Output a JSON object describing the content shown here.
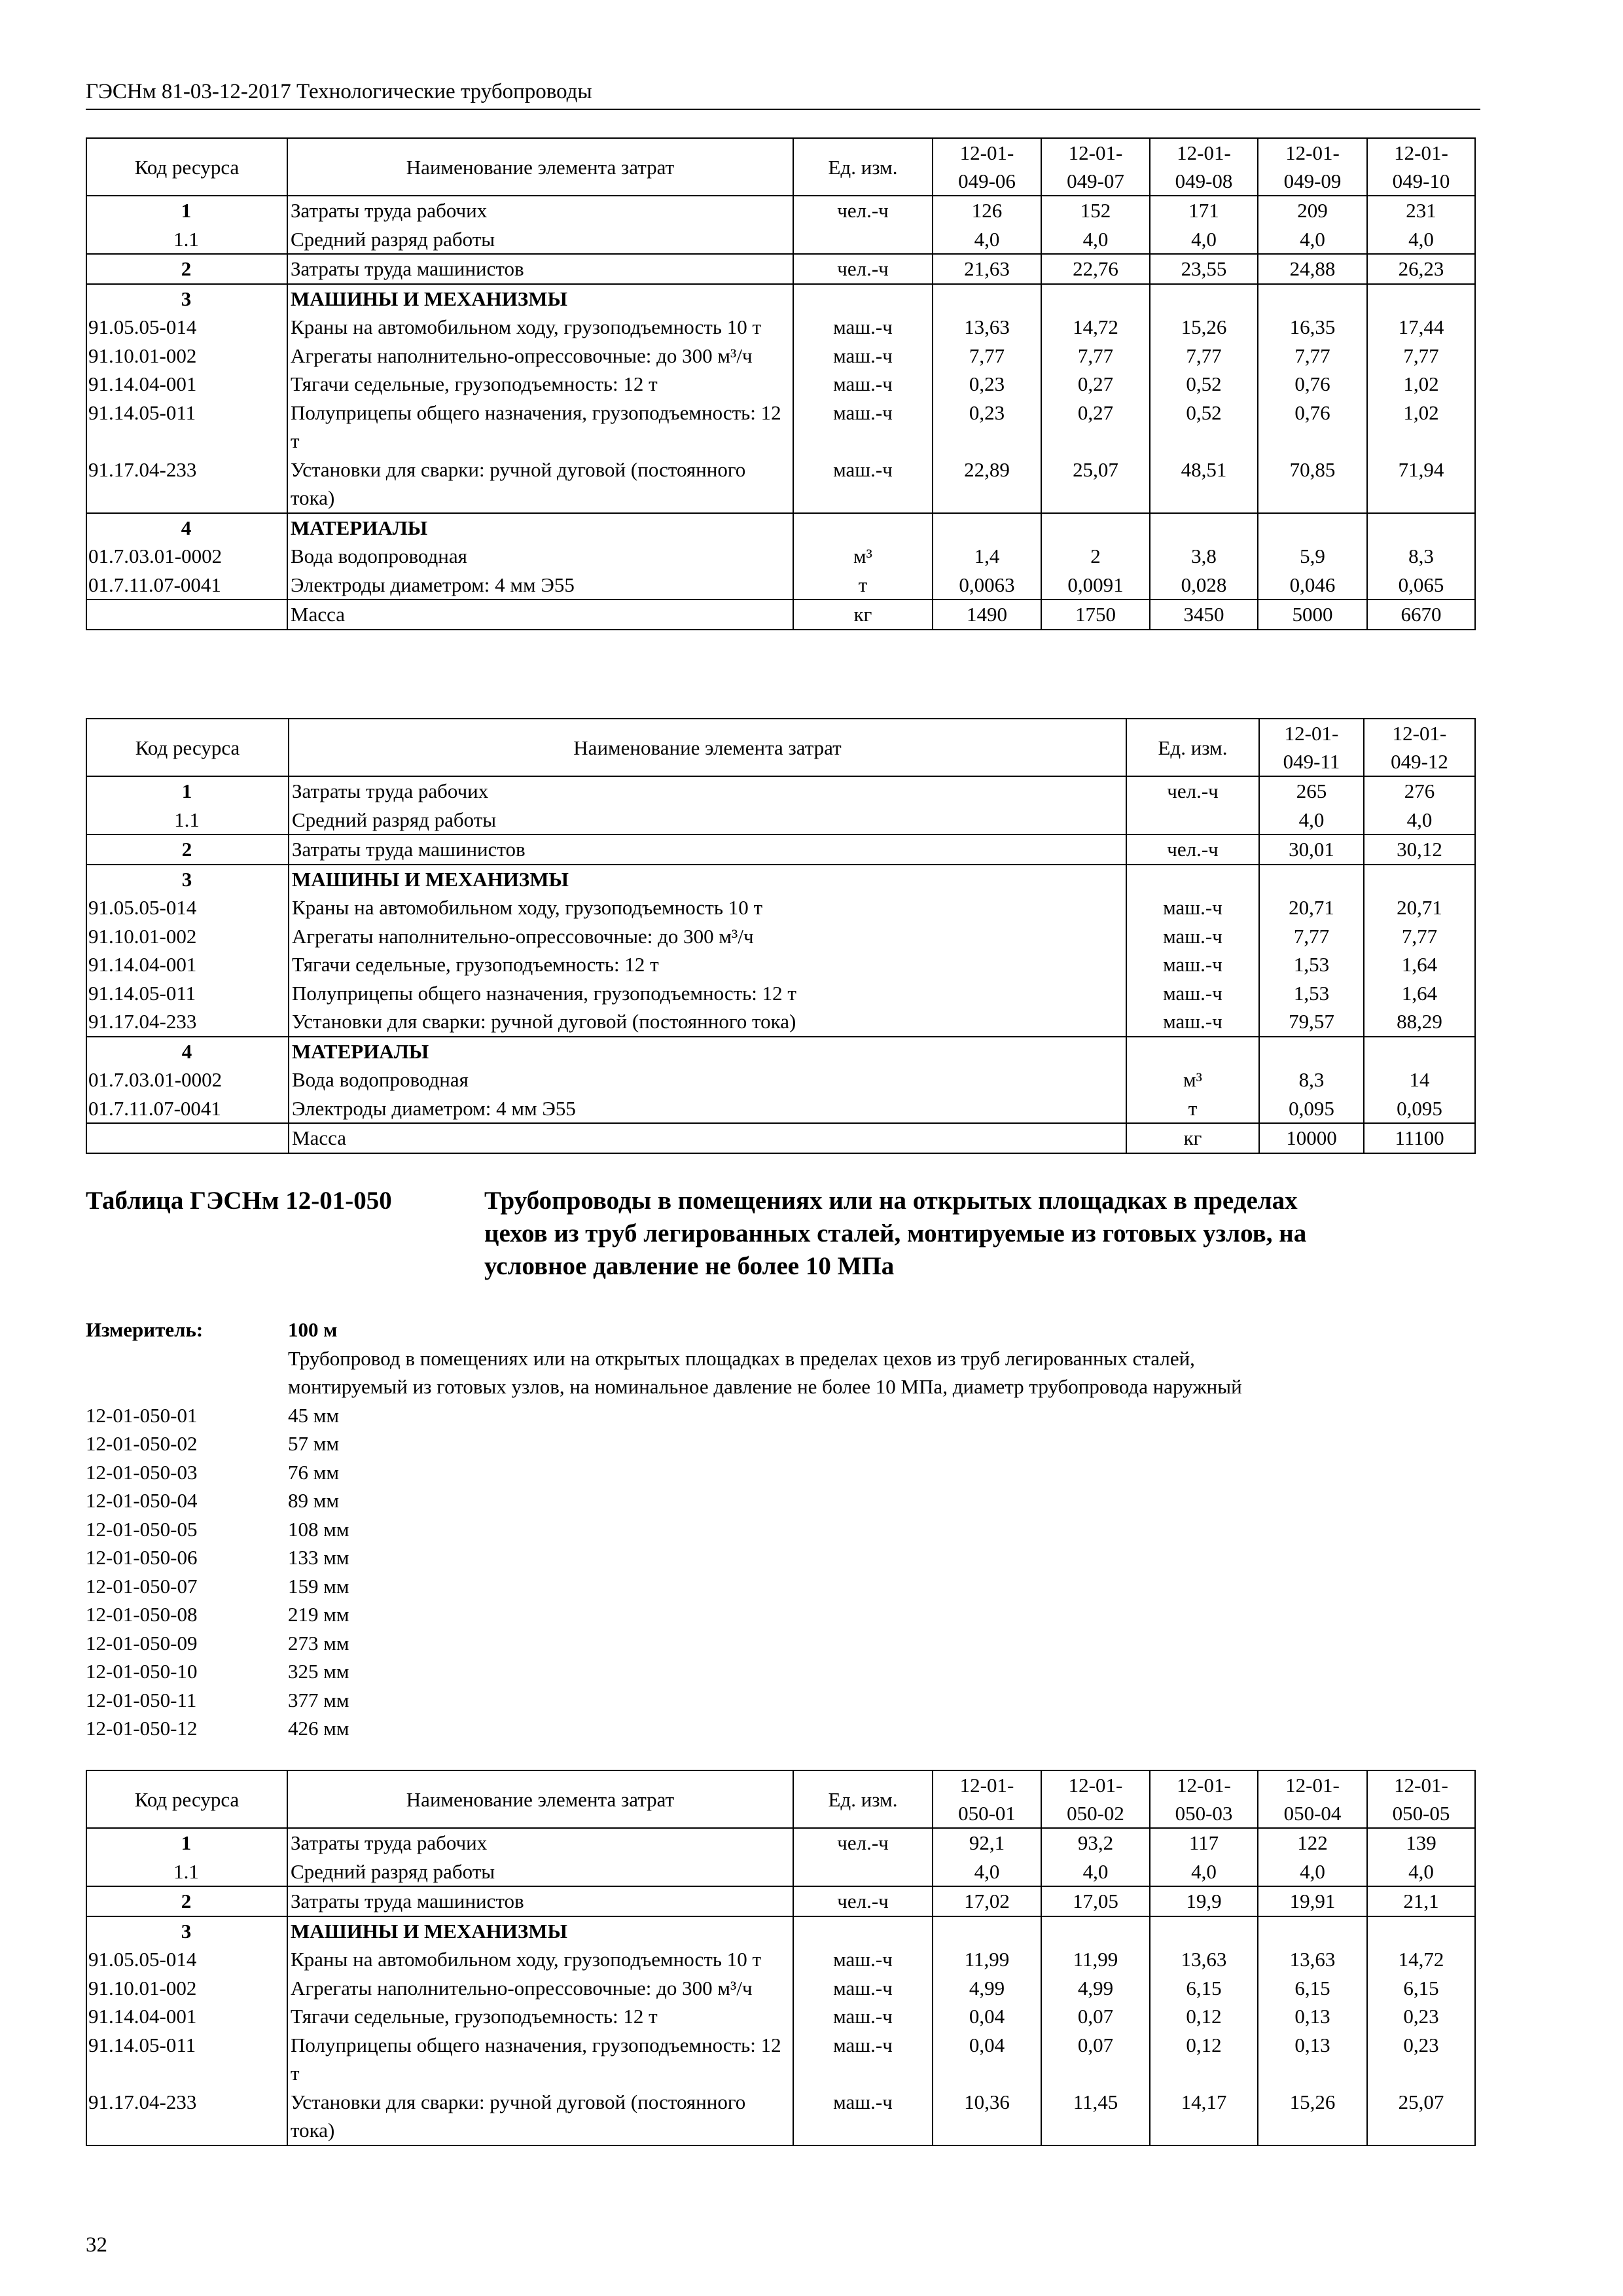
{
  "running_header": "ГЭСНм 81-03-12-2017 Технологические трубопроводы",
  "column_headers": {
    "code": "Код ресурса",
    "name": "Наименование элемента затрат",
    "unit": "Ед. изм."
  },
  "tables": [
    {
      "value_headers": [
        "12-01-\n049-06",
        "12-01-\n049-07",
        "12-01-\n049-08",
        "12-01-\n049-09",
        "12-01-\n049-10"
      ],
      "groups": [
        [
          {
            "code": "1",
            "code_style": "bold-center",
            "name": "Затраты труда рабочих",
            "unit": "чел.-ч",
            "values": [
              "126",
              "152",
              "171",
              "209",
              "231"
            ]
          },
          {
            "code": "1.1",
            "code_style": "center",
            "name": "Средний разряд работы",
            "unit": "",
            "values": [
              "4,0",
              "4,0",
              "4,0",
              "4,0",
              "4,0"
            ]
          }
        ],
        [
          {
            "code": "2",
            "code_style": "bold-center",
            "name": "Затраты труда машинистов",
            "unit": "чел.-ч",
            "values": [
              "21,63",
              "22,76",
              "23,55",
              "24,88",
              "26,23"
            ]
          }
        ],
        [
          {
            "code": "3",
            "code_style": "bold-center",
            "name": "МАШИНЫ И МЕХАНИЗМЫ",
            "name_bold": true,
            "unit": "",
            "values": [
              "",
              "",
              "",
              "",
              ""
            ]
          },
          {
            "code": "91.05.05-014",
            "name": "Краны на автомобильном ходу, грузоподъемность 10 т",
            "unit": "маш.-ч",
            "values": [
              "13,63",
              "14,72",
              "15,26",
              "16,35",
              "17,44"
            ]
          },
          {
            "code": "91.10.01-002",
            "name": "Агрегаты наполнительно-опрессовочные: до 300 м³/ч",
            "unit": "маш.-ч",
            "values": [
              "7,77",
              "7,77",
              "7,77",
              "7,77",
              "7,77"
            ]
          },
          {
            "code": "91.14.04-001",
            "name": "Тягачи седельные, грузоподъемность: 12 т",
            "unit": "маш.-ч",
            "values": [
              "0,23",
              "0,27",
              "0,52",
              "0,76",
              "1,02"
            ]
          },
          {
            "code": "91.14.05-011",
            "name": "Полуприцепы общего назначения, грузоподъемность: 12 т",
            "unit": "маш.-ч",
            "values": [
              "0,23",
              "0,27",
              "0,52",
              "0,76",
              "1,02"
            ]
          },
          {
            "code": "91.17.04-233",
            "name": "Установки для сварки: ручной дуговой (постоянного тока)",
            "unit": "маш.-ч",
            "values": [
              "22,89",
              "25,07",
              "48,51",
              "70,85",
              "71,94"
            ]
          }
        ],
        [
          {
            "code": "4",
            "code_style": "bold-center",
            "name": "МАТЕРИАЛЫ",
            "name_bold": true,
            "unit": "",
            "values": [
              "",
              "",
              "",
              "",
              ""
            ]
          },
          {
            "code": "01.7.03.01-0002",
            "name": "Вода водопроводная",
            "unit": "м³",
            "values": [
              "1,4",
              "2",
              "3,8",
              "5,9",
              "8,3"
            ]
          },
          {
            "code": "01.7.11.07-0041",
            "name": "Электроды диаметром: 4 мм Э55",
            "unit": "т",
            "values": [
              "0,0063",
              "0,0091",
              "0,028",
              "0,046",
              "0,065"
            ]
          }
        ],
        [
          {
            "code": "",
            "name": "Масса",
            "unit": "кг",
            "values": [
              "1490",
              "1750",
              "3450",
              "5000",
              "6670"
            ]
          }
        ]
      ]
    },
    {
      "value_headers": [
        "12-01-\n049-11",
        "12-01-\n049-12"
      ],
      "groups": [
        [
          {
            "code": "1",
            "code_style": "bold-center",
            "name": "Затраты труда рабочих",
            "unit": "чел.-ч",
            "values": [
              "265",
              "276"
            ]
          },
          {
            "code": "1.1",
            "code_style": "center",
            "name": "Средний разряд работы",
            "unit": "",
            "values": [
              "4,0",
              "4,0"
            ]
          }
        ],
        [
          {
            "code": "2",
            "code_style": "bold-center",
            "name": "Затраты труда машинистов",
            "unit": "чел.-ч",
            "values": [
              "30,01",
              "30,12"
            ]
          }
        ],
        [
          {
            "code": "3",
            "code_style": "bold-center",
            "name": "МАШИНЫ И МЕХАНИЗМЫ",
            "name_bold": true,
            "unit": "",
            "values": [
              "",
              ""
            ]
          },
          {
            "code": "91.05.05-014",
            "name": "Краны на автомобильном ходу, грузоподъемность 10 т",
            "unit": "маш.-ч",
            "values": [
              "20,71",
              "20,71"
            ]
          },
          {
            "code": "91.10.01-002",
            "name": "Агрегаты наполнительно-опрессовочные: до 300 м³/ч",
            "unit": "маш.-ч",
            "values": [
              "7,77",
              "7,77"
            ]
          },
          {
            "code": "91.14.04-001",
            "name": "Тягачи седельные, грузоподъемность: 12 т",
            "unit": "маш.-ч",
            "values": [
              "1,53",
              "1,64"
            ]
          },
          {
            "code": "91.14.05-011",
            "name": "Полуприцепы общего назначения, грузоподъемность: 12 т",
            "unit": "маш.-ч",
            "values": [
              "1,53",
              "1,64"
            ]
          },
          {
            "code": "91.17.04-233",
            "name": "Установки для сварки: ручной дуговой (постоянного тока)",
            "unit": "маш.-ч",
            "values": [
              "79,57",
              "88,29"
            ]
          }
        ],
        [
          {
            "code": "4",
            "code_style": "bold-center",
            "name": "МАТЕРИАЛЫ",
            "name_bold": true,
            "unit": "",
            "values": [
              "",
              ""
            ]
          },
          {
            "code": "01.7.03.01-0002",
            "name": "Вода водопроводная",
            "unit": "м³",
            "values": [
              "8,3",
              "14"
            ]
          },
          {
            "code": "01.7.11.07-0041",
            "name": "Электроды диаметром: 4 мм Э55",
            "unit": "т",
            "values": [
              "0,095",
              "0,095"
            ]
          }
        ],
        [
          {
            "code": "",
            "name": "Масса",
            "unit": "кг",
            "values": [
              "10000",
              "11100"
            ]
          }
        ]
      ]
    },
    {
      "value_headers": [
        "12-01-\n050-01",
        "12-01-\n050-02",
        "12-01-\n050-03",
        "12-01-\n050-04",
        "12-01-\n050-05"
      ],
      "groups": [
        [
          {
            "code": "1",
            "code_style": "bold-center",
            "name": "Затраты труда рабочих",
            "unit": "чел.-ч",
            "values": [
              "92,1",
              "93,2",
              "117",
              "122",
              "139"
            ]
          },
          {
            "code": "1.1",
            "code_style": "center",
            "name": "Средний разряд работы",
            "unit": "",
            "values": [
              "4,0",
              "4,0",
              "4,0",
              "4,0",
              "4,0"
            ]
          }
        ],
        [
          {
            "code": "2",
            "code_style": "bold-center",
            "name": "Затраты труда машинистов",
            "unit": "чел.-ч",
            "values": [
              "17,02",
              "17,05",
              "19,9",
              "19,91",
              "21,1"
            ]
          }
        ],
        [
          {
            "code": "3",
            "code_style": "bold-center",
            "name": "МАШИНЫ И МЕХАНИЗМЫ",
            "name_bold": true,
            "unit": "",
            "values": [
              "",
              "",
              "",
              "",
              ""
            ]
          },
          {
            "code": "91.05.05-014",
            "name": "Краны на автомобильном ходу, грузоподъемность 10 т",
            "unit": "маш.-ч",
            "values": [
              "11,99",
              "11,99",
              "13,63",
              "13,63",
              "14,72"
            ]
          },
          {
            "code": "91.10.01-002",
            "name": "Агрегаты наполнительно-опрессовочные: до 300 м³/ч",
            "unit": "маш.-ч",
            "values": [
              "4,99",
              "4,99",
              "6,15",
              "6,15",
              "6,15"
            ]
          },
          {
            "code": "91.14.04-001",
            "name": "Тягачи седельные, грузоподъемность: 12 т",
            "unit": "маш.-ч",
            "values": [
              "0,04",
              "0,07",
              "0,12",
              "0,13",
              "0,23"
            ]
          },
          {
            "code": "91.14.05-011",
            "name": "Полуприцепы общего назначения, грузоподъемность: 12 т",
            "unit": "маш.-ч",
            "values": [
              "0,04",
              "0,07",
              "0,12",
              "0,13",
              "0,23"
            ]
          },
          {
            "code": "91.17.04-233",
            "name": "Установки для сварки: ручной дуговой (постоянного тока)",
            "unit": "маш.-ч",
            "values": [
              "10,36",
              "11,45",
              "14,17",
              "15,26",
              "25,07"
            ]
          }
        ]
      ]
    }
  ],
  "table_050": {
    "label": "Таблица ГЭСНм 12-01-050",
    "title_lines": [
      "Трубопроводы в помещениях или на открытых площадках в пределах",
      "цехов из труб легированных сталей, монтируемые из готовых узлов, на",
      "условное давление не более 10 МПа"
    ],
    "meter_label": "Измеритель:",
    "meter_value": "100 м",
    "description_lines": [
      "Трубопровод в помещениях или на открытых площадках в пределах цехов из труб легированных сталей,",
      "монтируемый из готовых узлов, на номинальное давление не более 10 МПа, диаметр трубопровода наружный"
    ],
    "items": [
      {
        "code": "12-01-050-01",
        "value": "45 мм"
      },
      {
        "code": "12-01-050-02",
        "value": "57 мм"
      },
      {
        "code": "12-01-050-03",
        "value": "76 мм"
      },
      {
        "code": "12-01-050-04",
        "value": "89 мм"
      },
      {
        "code": "12-01-050-05",
        "value": "108 мм"
      },
      {
        "code": "12-01-050-06",
        "value": "133 мм"
      },
      {
        "code": "12-01-050-07",
        "value": "159 мм"
      },
      {
        "code": "12-01-050-08",
        "value": "219 мм"
      },
      {
        "code": "12-01-050-09",
        "value": "273 мм"
      },
      {
        "code": "12-01-050-10",
        "value": "325 мм"
      },
      {
        "code": "12-01-050-11",
        "value": "377 мм"
      },
      {
        "code": "12-01-050-12",
        "value": "426 мм"
      }
    ]
  },
  "page_number": "32"
}
